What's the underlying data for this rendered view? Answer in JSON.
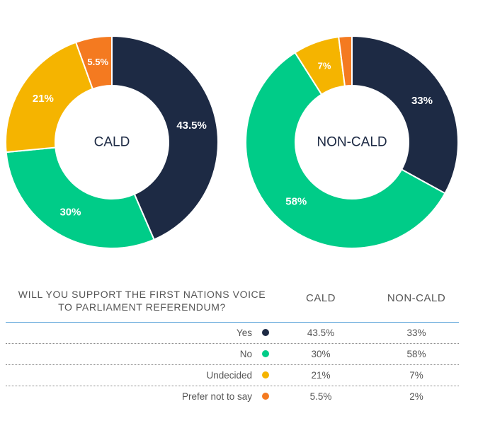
{
  "chart_data": [
    {
      "type": "pie",
      "center_label": "CALD",
      "categories": [
        "Yes",
        "No",
        "Undecided",
        "Prefer not to say"
      ],
      "values": [
        43.5,
        30,
        21,
        5.5
      ],
      "value_labels": [
        "43.5%",
        "30%",
        "21%",
        "5.5%"
      ],
      "colors": [
        "#1d2a44",
        "#00cc88",
        "#f5b400",
        "#f47a20"
      ]
    },
    {
      "type": "pie",
      "center_label": "NON-CALD",
      "categories": [
        "Yes",
        "No",
        "Undecided",
        "Prefer not to say"
      ],
      "values": [
        33,
        58,
        7,
        2
      ],
      "value_labels": [
        "33%",
        "58%",
        "7%",
        ""
      ],
      "colors": [
        "#1d2a44",
        "#00cc88",
        "#f5b400",
        "#f47a20"
      ]
    }
  ],
  "table": {
    "question_line1": "WILL YOU SUPPORT THE FIRST NATIONS VOICE",
    "question_line2": "TO PARLIAMENT REFERENDUM?",
    "col1": "CALD",
    "col2": "NON-CALD",
    "rows": [
      {
        "label": "Yes",
        "color": "#1d2a44",
        "cald": "43.5%",
        "noncald": "33%"
      },
      {
        "label": "No",
        "color": "#00cc88",
        "cald": "30%",
        "noncald": "58%"
      },
      {
        "label": "Undecided",
        "color": "#f5b400",
        "cald": "21%",
        "noncald": "7%"
      },
      {
        "label": "Prefer not to say",
        "color": "#f47a20",
        "cald": "5.5%",
        "noncald": "2%"
      }
    ]
  }
}
